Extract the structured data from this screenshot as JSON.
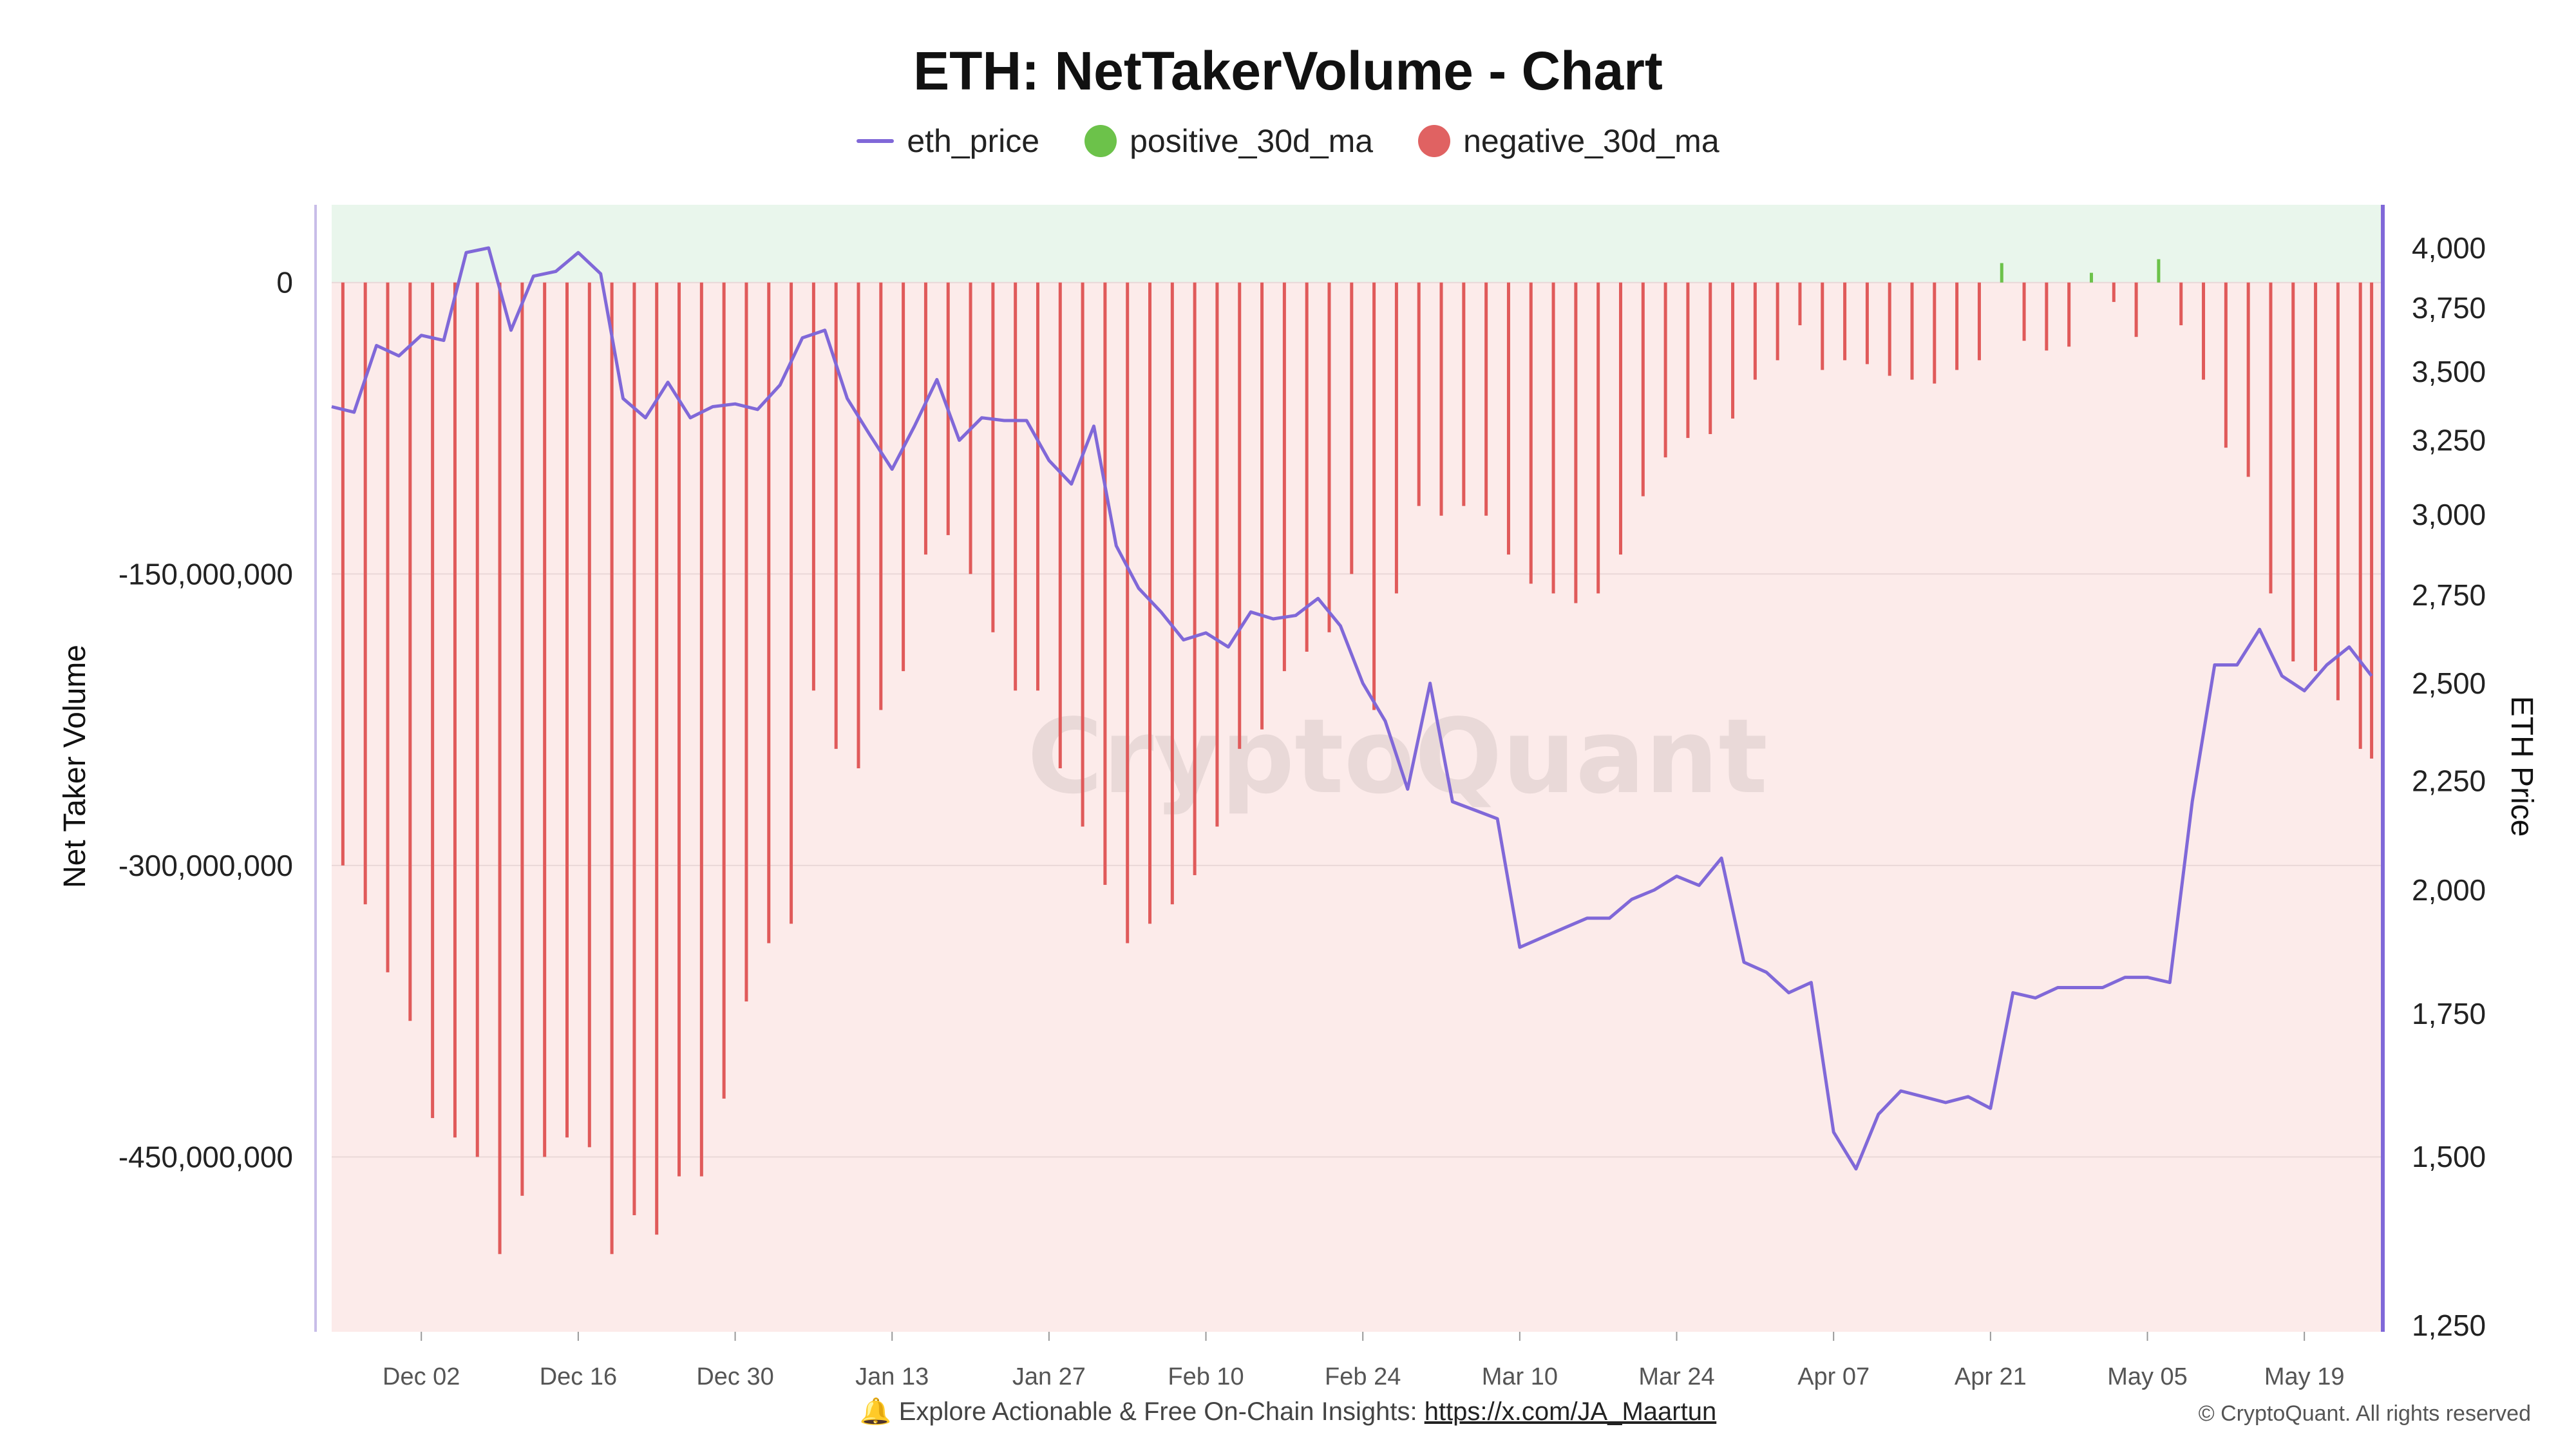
{
  "chart_data": {
    "type": "bar",
    "title": "ETH: NetTakerVolume - Chart",
    "ylabel_left": "Net Taker Volume",
    "ylabel_right": "ETH Price",
    "y_left_ticks": [
      0,
      -150000000,
      -300000000,
      -450000000
    ],
    "y_left_tick_labels": [
      "0",
      "-150,000,000",
      "-300,000,000",
      "-450,000,000"
    ],
    "y_left_range": [
      -540000000,
      40000000
    ],
    "y_right_scale": "log",
    "y_right_ticks": [
      1250,
      1500,
      1750,
      2000,
      2250,
      2500,
      2750,
      3000,
      3250,
      3500,
      3750,
      4000
    ],
    "y_right_tick_labels": [
      "1,250",
      "1,500",
      "1,750",
      "2,000",
      "2,250",
      "2,500",
      "2,750",
      "3,000",
      "3,250",
      "3,500",
      "3,750",
      "4,000"
    ],
    "x_tick_labels": [
      "Dec 02",
      "Dec 16",
      "Dec 30",
      "Jan 13",
      "Jan 27",
      "Feb 10",
      "Feb 24",
      "Mar 10",
      "Mar 24",
      "Apr 07",
      "Apr 21",
      "May 05",
      "May 19"
    ],
    "x_range": [
      "2024-11-24",
      "2025-05-26"
    ],
    "legend": [
      "eth_price",
      "positive_30d_ma",
      "negative_30d_ma"
    ],
    "colors": {
      "eth_price": "#8068d8",
      "positive": "#6cc24a",
      "negative": "#e05a5a",
      "positive_bg": "#e9f6ec",
      "negative_bg": "#fcebea"
    },
    "net_taker_volume_series": [
      {
        "date": "2024-11-25",
        "value": -300000000
      },
      {
        "date": "2024-11-27",
        "value": -320000000
      },
      {
        "date": "2024-11-29",
        "value": -355000000
      },
      {
        "date": "2024-12-01",
        "value": -380000000
      },
      {
        "date": "2024-12-03",
        "value": -430000000
      },
      {
        "date": "2024-12-05",
        "value": -440000000
      },
      {
        "date": "2024-12-07",
        "value": -450000000
      },
      {
        "date": "2024-12-09",
        "value": -500000000
      },
      {
        "date": "2024-12-11",
        "value": -470000000
      },
      {
        "date": "2024-12-13",
        "value": -450000000
      },
      {
        "date": "2024-12-15",
        "value": -440000000
      },
      {
        "date": "2024-12-17",
        "value": -445000000
      },
      {
        "date": "2024-12-19",
        "value": -500000000
      },
      {
        "date": "2024-12-21",
        "value": -480000000
      },
      {
        "date": "2024-12-23",
        "value": -490000000
      },
      {
        "date": "2024-12-25",
        "value": -460000000
      },
      {
        "date": "2024-12-27",
        "value": -460000000
      },
      {
        "date": "2024-12-29",
        "value": -420000000
      },
      {
        "date": "2024-12-31",
        "value": -370000000
      },
      {
        "date": "2025-01-02",
        "value": -340000000
      },
      {
        "date": "2025-01-04",
        "value": -330000000
      },
      {
        "date": "2025-01-06",
        "value": -210000000
      },
      {
        "date": "2025-01-08",
        "value": -240000000
      },
      {
        "date": "2025-01-10",
        "value": -250000000
      },
      {
        "date": "2025-01-12",
        "value": -220000000
      },
      {
        "date": "2025-01-14",
        "value": -200000000
      },
      {
        "date": "2025-01-16",
        "value": -140000000
      },
      {
        "date": "2025-01-18",
        "value": -130000000
      },
      {
        "date": "2025-01-20",
        "value": -150000000
      },
      {
        "date": "2025-01-22",
        "value": -180000000
      },
      {
        "date": "2025-01-24",
        "value": -210000000
      },
      {
        "date": "2025-01-26",
        "value": -210000000
      },
      {
        "date": "2025-01-28",
        "value": -250000000
      },
      {
        "date": "2025-01-30",
        "value": -280000000
      },
      {
        "date": "2025-02-01",
        "value": -310000000
      },
      {
        "date": "2025-02-03",
        "value": -340000000
      },
      {
        "date": "2025-02-05",
        "value": -330000000
      },
      {
        "date": "2025-02-07",
        "value": -320000000
      },
      {
        "date": "2025-02-09",
        "value": -305000000
      },
      {
        "date": "2025-02-11",
        "value": -280000000
      },
      {
        "date": "2025-02-13",
        "value": -240000000
      },
      {
        "date": "2025-02-15",
        "value": -230000000
      },
      {
        "date": "2025-02-17",
        "value": -200000000
      },
      {
        "date": "2025-02-19",
        "value": -190000000
      },
      {
        "date": "2025-02-21",
        "value": -180000000
      },
      {
        "date": "2025-02-23",
        "value": -150000000
      },
      {
        "date": "2025-02-25",
        "value": -220000000
      },
      {
        "date": "2025-02-27",
        "value": -160000000
      },
      {
        "date": "2025-03-01",
        "value": -115000000
      },
      {
        "date": "2025-03-03",
        "value": -120000000
      },
      {
        "date": "2025-03-05",
        "value": -115000000
      },
      {
        "date": "2025-03-07",
        "value": -120000000
      },
      {
        "date": "2025-03-09",
        "value": -140000000
      },
      {
        "date": "2025-03-11",
        "value": -155000000
      },
      {
        "date": "2025-03-13",
        "value": -160000000
      },
      {
        "date": "2025-03-15",
        "value": -165000000
      },
      {
        "date": "2025-03-17",
        "value": -160000000
      },
      {
        "date": "2025-03-19",
        "value": -140000000
      },
      {
        "date": "2025-03-21",
        "value": -110000000
      },
      {
        "date": "2025-03-23",
        "value": -90000000
      },
      {
        "date": "2025-03-25",
        "value": -80000000
      },
      {
        "date": "2025-03-27",
        "value": -78000000
      },
      {
        "date": "2025-03-29",
        "value": -70000000
      },
      {
        "date": "2025-03-31",
        "value": -50000000
      },
      {
        "date": "2025-04-02",
        "value": -40000000
      },
      {
        "date": "2025-04-04",
        "value": -22000000
      },
      {
        "date": "2025-04-06",
        "value": -45000000
      },
      {
        "date": "2025-04-08",
        "value": -40000000
      },
      {
        "date": "2025-04-10",
        "value": -42000000
      },
      {
        "date": "2025-04-12",
        "value": -48000000
      },
      {
        "date": "2025-04-14",
        "value": -50000000
      },
      {
        "date": "2025-04-16",
        "value": -52000000
      },
      {
        "date": "2025-04-18",
        "value": -45000000
      },
      {
        "date": "2025-04-20",
        "value": -40000000
      },
      {
        "date": "2025-04-22",
        "value": 10000000
      },
      {
        "date": "2025-04-24",
        "value": -30000000
      },
      {
        "date": "2025-04-26",
        "value": -35000000
      },
      {
        "date": "2025-04-28",
        "value": -33000000
      },
      {
        "date": "2025-04-30",
        "value": 5000000
      },
      {
        "date": "2025-05-02",
        "value": -10000000
      },
      {
        "date": "2025-05-04",
        "value": -28000000
      },
      {
        "date": "2025-05-06",
        "value": 12000000
      },
      {
        "date": "2025-05-08",
        "value": -22000000
      },
      {
        "date": "2025-05-10",
        "value": -50000000
      },
      {
        "date": "2025-05-12",
        "value": -85000000
      },
      {
        "date": "2025-05-14",
        "value": -100000000
      },
      {
        "date": "2025-05-16",
        "value": -160000000
      },
      {
        "date": "2025-05-18",
        "value": -195000000
      },
      {
        "date": "2025-05-20",
        "value": -200000000
      },
      {
        "date": "2025-05-22",
        "value": -215000000
      },
      {
        "date": "2025-05-24",
        "value": -240000000
      },
      {
        "date": "2025-05-25",
        "value": -245000000
      }
    ],
    "eth_price_series": [
      {
        "date": "2024-11-24",
        "value": 3370
      },
      {
        "date": "2024-11-26",
        "value": 3350
      },
      {
        "date": "2024-11-28",
        "value": 3600
      },
      {
        "date": "2024-11-30",
        "value": 3560
      },
      {
        "date": "2024-12-02",
        "value": 3640
      },
      {
        "date": "2024-12-04",
        "value": 3620
      },
      {
        "date": "2024-12-06",
        "value": 3980
      },
      {
        "date": "2024-12-08",
        "value": 4000
      },
      {
        "date": "2024-12-10",
        "value": 3660
      },
      {
        "date": "2024-12-12",
        "value": 3880
      },
      {
        "date": "2024-12-14",
        "value": 3900
      },
      {
        "date": "2024-12-16",
        "value": 3980
      },
      {
        "date": "2024-12-18",
        "value": 3890
      },
      {
        "date": "2024-12-20",
        "value": 3400
      },
      {
        "date": "2024-12-22",
        "value": 3330
      },
      {
        "date": "2024-12-24",
        "value": 3460
      },
      {
        "date": "2024-12-26",
        "value": 3330
      },
      {
        "date": "2024-12-28",
        "value": 3370
      },
      {
        "date": "2024-12-30",
        "value": 3380
      },
      {
        "date": "2025-01-01",
        "value": 3360
      },
      {
        "date": "2025-01-03",
        "value": 3450
      },
      {
        "date": "2025-01-05",
        "value": 3630
      },
      {
        "date": "2025-01-07",
        "value": 3660
      },
      {
        "date": "2025-01-09",
        "value": 3400
      },
      {
        "date": "2025-01-11",
        "value": 3270
      },
      {
        "date": "2025-01-13",
        "value": 3150
      },
      {
        "date": "2025-01-15",
        "value": 3300
      },
      {
        "date": "2025-01-17",
        "value": 3470
      },
      {
        "date": "2025-01-19",
        "value": 3250
      },
      {
        "date": "2025-01-21",
        "value": 3330
      },
      {
        "date": "2025-01-23",
        "value": 3320
      },
      {
        "date": "2025-01-25",
        "value": 3320
      },
      {
        "date": "2025-01-27",
        "value": 3180
      },
      {
        "date": "2025-01-29",
        "value": 3100
      },
      {
        "date": "2025-01-31",
        "value": 3300
      },
      {
        "date": "2025-02-02",
        "value": 2900
      },
      {
        "date": "2025-02-04",
        "value": 2770
      },
      {
        "date": "2025-02-06",
        "value": 2700
      },
      {
        "date": "2025-02-08",
        "value": 2620
      },
      {
        "date": "2025-02-10",
        "value": 2640
      },
      {
        "date": "2025-02-12",
        "value": 2600
      },
      {
        "date": "2025-02-14",
        "value": 2700
      },
      {
        "date": "2025-02-16",
        "value": 2680
      },
      {
        "date": "2025-02-18",
        "value": 2690
      },
      {
        "date": "2025-02-20",
        "value": 2740
      },
      {
        "date": "2025-02-22",
        "value": 2660
      },
      {
        "date": "2025-02-24",
        "value": 2500
      },
      {
        "date": "2025-02-26",
        "value": 2400
      },
      {
        "date": "2025-02-28",
        "value": 2230
      },
      {
        "date": "2025-03-02",
        "value": 2500
      },
      {
        "date": "2025-03-04",
        "value": 2200
      },
      {
        "date": "2025-03-06",
        "value": 2180
      },
      {
        "date": "2025-03-08",
        "value": 2160
      },
      {
        "date": "2025-03-10",
        "value": 1880
      },
      {
        "date": "2025-03-12",
        "value": 1900
      },
      {
        "date": "2025-03-14",
        "value": 1920
      },
      {
        "date": "2025-03-16",
        "value": 1940
      },
      {
        "date": "2025-03-18",
        "value": 1940
      },
      {
        "date": "2025-03-20",
        "value": 1980
      },
      {
        "date": "2025-03-22",
        "value": 2000
      },
      {
        "date": "2025-03-24",
        "value": 2030
      },
      {
        "date": "2025-03-26",
        "value": 2010
      },
      {
        "date": "2025-03-28",
        "value": 2070
      },
      {
        "date": "2025-03-30",
        "value": 1850
      },
      {
        "date": "2025-04-01",
        "value": 1830
      },
      {
        "date": "2025-04-03",
        "value": 1790
      },
      {
        "date": "2025-04-05",
        "value": 1810
      },
      {
        "date": "2025-04-07",
        "value": 1540
      },
      {
        "date": "2025-04-09",
        "value": 1480
      },
      {
        "date": "2025-04-11",
        "value": 1570
      },
      {
        "date": "2025-04-13",
        "value": 1610
      },
      {
        "date": "2025-04-15",
        "value": 1600
      },
      {
        "date": "2025-04-17",
        "value": 1590
      },
      {
        "date": "2025-04-19",
        "value": 1600
      },
      {
        "date": "2025-04-21",
        "value": 1580
      },
      {
        "date": "2025-04-23",
        "value": 1790
      },
      {
        "date": "2025-04-25",
        "value": 1780
      },
      {
        "date": "2025-04-27",
        "value": 1800
      },
      {
        "date": "2025-04-29",
        "value": 1800
      },
      {
        "date": "2025-05-01",
        "value": 1800
      },
      {
        "date": "2025-05-03",
        "value": 1820
      },
      {
        "date": "2025-05-05",
        "value": 1820
      },
      {
        "date": "2025-05-07",
        "value": 1810
      },
      {
        "date": "2025-05-09",
        "value": 2200
      },
      {
        "date": "2025-05-11",
        "value": 2550
      },
      {
        "date": "2025-05-13",
        "value": 2550
      },
      {
        "date": "2025-05-15",
        "value": 2650
      },
      {
        "date": "2025-05-17",
        "value": 2520
      },
      {
        "date": "2025-05-19",
        "value": 2480
      },
      {
        "date": "2025-05-21",
        "value": 2550
      },
      {
        "date": "2025-05-23",
        "value": 2600
      },
      {
        "date": "2025-05-25",
        "value": 2520
      }
    ]
  },
  "watermark": "CryptoQuant",
  "footer": {
    "bell_icon": "🔔",
    "text": "Explore Actionable & Free On-Chain Insights:",
    "link": "https://x.com/JA_Maartun"
  },
  "copyright": "© CryptoQuant. All rights reserved"
}
